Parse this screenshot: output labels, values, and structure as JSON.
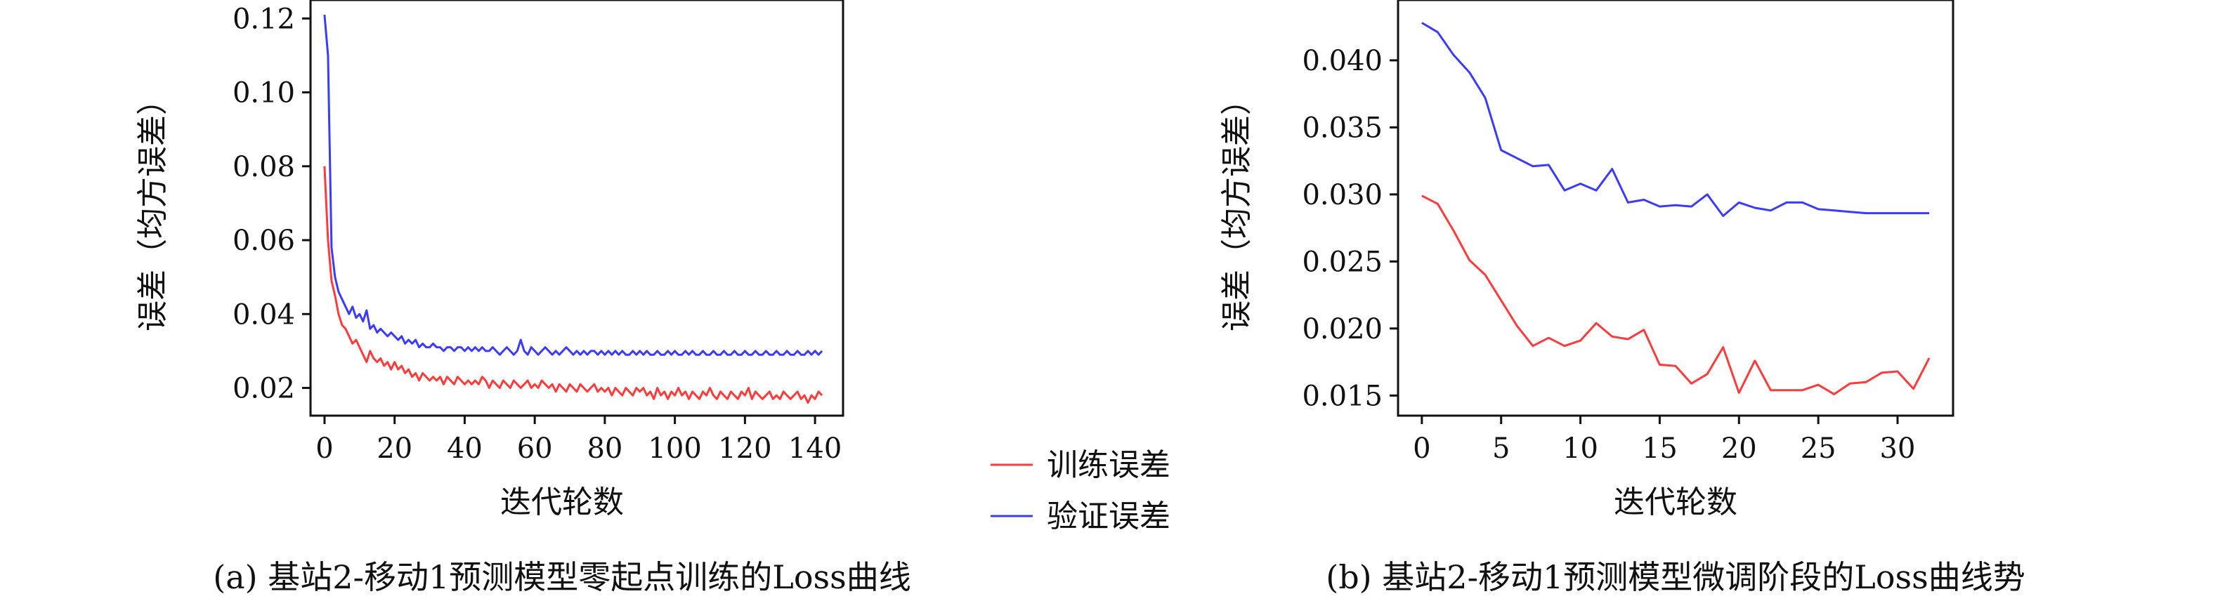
{
  "colors": {
    "train": "#ff3b3b",
    "val": "#3b3bff",
    "axis": "#111111"
  },
  "legend": {
    "train": "训练误差",
    "val": "验证误差",
    "placement": "between-panels"
  },
  "chart_data": [
    {
      "type": "line",
      "caption": "(a) 基站2-移动1预测模型零起点训练的Loss曲线",
      "xlabel": "迭代轮数",
      "ylabel": "误差（均方误差）",
      "xlim": [
        -4,
        148
      ],
      "ylim": [
        0.0125,
        0.125
      ],
      "xticks": [
        0,
        20,
        40,
        60,
        80,
        100,
        120,
        140
      ],
      "xtick_labels": [
        "0",
        "20",
        "40",
        "60",
        "80",
        "100",
        "120",
        "140"
      ],
      "yticks": [
        0.02,
        0.04,
        0.06,
        0.08,
        0.1,
        0.12
      ],
      "ytick_labels": [
        "0.02",
        "0.04",
        "0.06",
        "0.08",
        "0.10",
        "0.12"
      ],
      "grid": false,
      "series": [
        {
          "name": "训练误差",
          "key": "train",
          "x": [
            0,
            1,
            2,
            3,
            4,
            5,
            6,
            7,
            8,
            9,
            10,
            11,
            12,
            13,
            14,
            15,
            16,
            17,
            18,
            19,
            20,
            21,
            22,
            23,
            24,
            25,
            26,
            27,
            28,
            29,
            30,
            31,
            32,
            33,
            34,
            35,
            36,
            37,
            38,
            39,
            40,
            41,
            42,
            43,
            44,
            45,
            46,
            47,
            48,
            49,
            50,
            51,
            52,
            53,
            54,
            55,
            56,
            57,
            58,
            59,
            60,
            61,
            62,
            63,
            64,
            65,
            66,
            67,
            68,
            69,
            70,
            71,
            72,
            73,
            74,
            75,
            76,
            77,
            78,
            79,
            80,
            81,
            82,
            83,
            84,
            85,
            86,
            87,
            88,
            89,
            90,
            91,
            92,
            93,
            94,
            95,
            96,
            97,
            98,
            99,
            100,
            101,
            102,
            103,
            104,
            105,
            106,
            107,
            108,
            109,
            110,
            111,
            112,
            113,
            114,
            115,
            116,
            117,
            118,
            119,
            120,
            121,
            122,
            123,
            124,
            125,
            126,
            127,
            128,
            129,
            130,
            131,
            132,
            133,
            134,
            135,
            136,
            137,
            138,
            139,
            140,
            141,
            142
          ],
          "values": [
            0.08,
            0.06,
            0.049,
            0.045,
            0.04,
            0.037,
            0.036,
            0.034,
            0.032,
            0.033,
            0.031,
            0.029,
            0.027,
            0.03,
            0.028,
            0.027,
            0.028,
            0.026,
            0.027,
            0.025,
            0.027,
            0.025,
            0.026,
            0.024,
            0.025,
            0.023,
            0.024,
            0.022,
            0.024,
            0.023,
            0.022,
            0.023,
            0.022,
            0.023,
            0.021,
            0.023,
            0.022,
            0.021,
            0.023,
            0.022,
            0.021,
            0.022,
            0.021,
            0.022,
            0.021,
            0.023,
            0.022,
            0.02,
            0.022,
            0.021,
            0.02,
            0.022,
            0.021,
            0.02,
            0.022,
            0.021,
            0.02,
            0.021,
            0.022,
            0.02,
            0.021,
            0.02,
            0.022,
            0.021,
            0.02,
            0.021,
            0.019,
            0.021,
            0.02,
            0.019,
            0.021,
            0.02,
            0.019,
            0.021,
            0.02,
            0.019,
            0.02,
            0.021,
            0.019,
            0.02,
            0.019,
            0.02,
            0.018,
            0.02,
            0.019,
            0.018,
            0.02,
            0.019,
            0.018,
            0.02,
            0.019,
            0.02,
            0.018,
            0.019,
            0.017,
            0.02,
            0.018,
            0.019,
            0.017,
            0.019,
            0.018,
            0.02,
            0.018,
            0.019,
            0.017,
            0.019,
            0.018,
            0.017,
            0.019,
            0.018,
            0.02,
            0.018,
            0.017,
            0.019,
            0.018,
            0.017,
            0.019,
            0.018,
            0.017,
            0.019,
            0.018,
            0.02,
            0.017,
            0.019,
            0.018,
            0.017,
            0.018,
            0.019,
            0.017,
            0.018,
            0.017,
            0.019,
            0.018,
            0.017,
            0.018,
            0.019,
            0.017,
            0.018,
            0.016,
            0.018,
            0.017,
            0.019,
            0.018
          ]
        },
        {
          "name": "验证误差",
          "key": "val",
          "x": [
            0,
            1,
            2,
            3,
            4,
            5,
            6,
            7,
            8,
            9,
            10,
            11,
            12,
            13,
            14,
            15,
            16,
            17,
            18,
            19,
            20,
            21,
            22,
            23,
            24,
            25,
            26,
            27,
            28,
            29,
            30,
            31,
            32,
            33,
            34,
            35,
            36,
            37,
            38,
            39,
            40,
            41,
            42,
            43,
            44,
            45,
            46,
            47,
            48,
            49,
            50,
            51,
            52,
            53,
            54,
            55,
            56,
            57,
            58,
            59,
            60,
            61,
            62,
            63,
            64,
            65,
            66,
            67,
            68,
            69,
            70,
            71,
            72,
            73,
            74,
            75,
            76,
            77,
            78,
            79,
            80,
            81,
            82,
            83,
            84,
            85,
            86,
            87,
            88,
            89,
            90,
            91,
            92,
            93,
            94,
            95,
            96,
            97,
            98,
            99,
            100,
            101,
            102,
            103,
            104,
            105,
            106,
            107,
            108,
            109,
            110,
            111,
            112,
            113,
            114,
            115,
            116,
            117,
            118,
            119,
            120,
            121,
            122,
            123,
            124,
            125,
            126,
            127,
            128,
            129,
            130,
            131,
            132,
            133,
            134,
            135,
            136,
            137,
            138,
            139,
            140,
            141,
            142
          ],
          "values": [
            0.121,
            0.11,
            0.058,
            0.05,
            0.046,
            0.044,
            0.042,
            0.04,
            0.042,
            0.039,
            0.04,
            0.038,
            0.041,
            0.036,
            0.037,
            0.035,
            0.036,
            0.035,
            0.034,
            0.035,
            0.034,
            0.033,
            0.034,
            0.032,
            0.033,
            0.032,
            0.033,
            0.031,
            0.032,
            0.031,
            0.031,
            0.032,
            0.031,
            0.031,
            0.03,
            0.031,
            0.031,
            0.03,
            0.031,
            0.031,
            0.03,
            0.031,
            0.03,
            0.031,
            0.03,
            0.031,
            0.03,
            0.03,
            0.031,
            0.03,
            0.029,
            0.03,
            0.031,
            0.03,
            0.029,
            0.03,
            0.033,
            0.03,
            0.029,
            0.031,
            0.03,
            0.029,
            0.03,
            0.031,
            0.03,
            0.029,
            0.03,
            0.029,
            0.03,
            0.031,
            0.03,
            0.029,
            0.03,
            0.029,
            0.03,
            0.029,
            0.03,
            0.03,
            0.029,
            0.03,
            0.029,
            0.03,
            0.029,
            0.03,
            0.029,
            0.03,
            0.029,
            0.029,
            0.03,
            0.029,
            0.03,
            0.029,
            0.03,
            0.029,
            0.029,
            0.03,
            0.029,
            0.029,
            0.03,
            0.029,
            0.03,
            0.029,
            0.029,
            0.03,
            0.029,
            0.03,
            0.029,
            0.029,
            0.03,
            0.029,
            0.029,
            0.03,
            0.029,
            0.029,
            0.03,
            0.029,
            0.029,
            0.03,
            0.029,
            0.029,
            0.03,
            0.029,
            0.029,
            0.03,
            0.029,
            0.029,
            0.03,
            0.029,
            0.029,
            0.03,
            0.029,
            0.029,
            0.03,
            0.029,
            0.029,
            0.03,
            0.029,
            0.029,
            0.03,
            0.029,
            0.03,
            0.029,
            0.03
          ]
        }
      ]
    },
    {
      "type": "line",
      "caption": "(b) 基站2-移动1预测模型微调阶段的Loss曲线势",
      "xlabel": "迭代轮数",
      "ylabel": "误差（均方误差）",
      "xlim": [
        -1.5,
        33.5
      ],
      "ylim": [
        0.0135,
        0.0445
      ],
      "xticks": [
        0,
        5,
        10,
        15,
        20,
        25,
        30
      ],
      "xtick_labels": [
        "0",
        "5",
        "10",
        "15",
        "20",
        "25",
        "30"
      ],
      "yticks": [
        0.015,
        0.02,
        0.025,
        0.03,
        0.035,
        0.04
      ],
      "ytick_labels": [
        "0.015",
        "0.020",
        "0.025",
        "0.030",
        "0.035",
        "0.040"
      ],
      "grid": false,
      "series": [
        {
          "name": "训练误差",
          "key": "train",
          "x": [
            0,
            1,
            2,
            3,
            4,
            5,
            6,
            7,
            8,
            9,
            10,
            11,
            12,
            13,
            14,
            15,
            16,
            17,
            18,
            19,
            20,
            21,
            22,
            23,
            24,
            25,
            26,
            27,
            28,
            29,
            30,
            31,
            32
          ],
          "values": [
            0.0299,
            0.0293,
            0.0273,
            0.0251,
            0.024,
            0.0221,
            0.0202,
            0.0187,
            0.0193,
            0.0187,
            0.0191,
            0.0204,
            0.0194,
            0.0192,
            0.0199,
            0.0173,
            0.0172,
            0.0159,
            0.0166,
            0.0186,
            0.0152,
            0.0176,
            0.0154,
            0.0154,
            0.0154,
            0.0158,
            0.0151,
            0.0159,
            0.016,
            0.0167,
            0.0168,
            0.0155,
            0.0178
          ]
        },
        {
          "name": "验证误差",
          "key": "val",
          "x": [
            0,
            1,
            2,
            3,
            4,
            5,
            6,
            7,
            8,
            9,
            10,
            11,
            12,
            13,
            14,
            15,
            16,
            17,
            18,
            19,
            20,
            21,
            22,
            23,
            24,
            25,
            26,
            27,
            28,
            29,
            30,
            31,
            32
          ],
          "values": [
            0.0428,
            0.0421,
            0.0404,
            0.0391,
            0.0372,
            0.0333,
            0.0327,
            0.0321,
            0.0322,
            0.0303,
            0.0308,
            0.0303,
            0.0319,
            0.0294,
            0.0296,
            0.0291,
            0.0292,
            0.0291,
            0.03,
            0.0284,
            0.0294,
            0.029,
            0.0288,
            0.0294,
            0.0294,
            0.0289,
            0.0288,
            0.0287,
            0.0286,
            0.0286,
            0.0286,
            0.0286,
            0.0286
          ]
        }
      ]
    }
  ]
}
